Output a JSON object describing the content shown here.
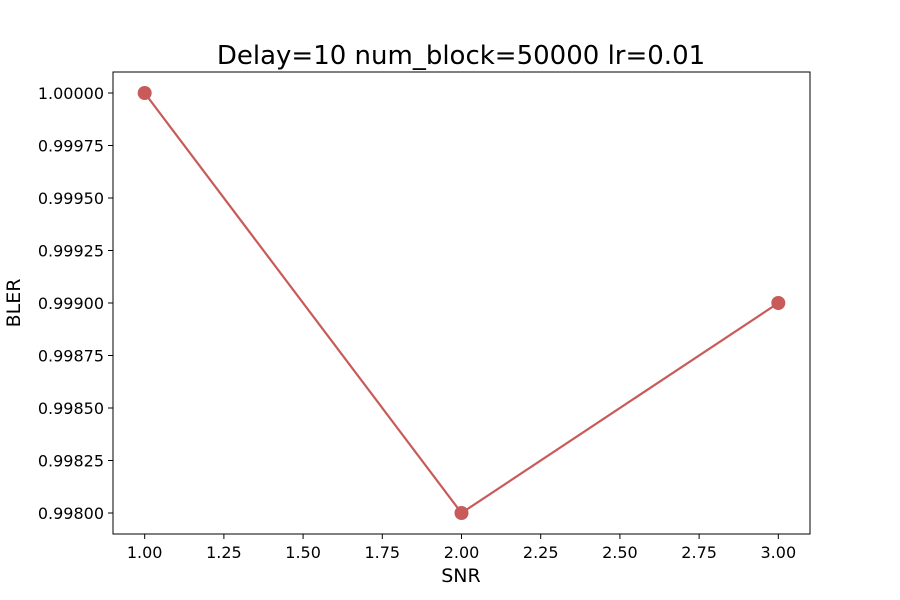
{
  "chart_data": {
    "type": "line",
    "title": "Delay=10 num_block=50000 lr=0.01",
    "xlabel": "SNR",
    "ylabel": "BLER",
    "x": [
      1.0,
      2.0,
      3.0
    ],
    "series": [
      {
        "values": [
          1.0,
          0.998,
          0.999
        ],
        "color": "#c85a5a",
        "marker": "circle"
      }
    ],
    "xlim": [
      0.9,
      3.1
    ],
    "ylim": [
      0.9979,
      1.0001
    ],
    "xticks": [
      1.0,
      1.25,
      1.5,
      1.75,
      2.0,
      2.25,
      2.5,
      2.75,
      3.0
    ],
    "xtick_labels": [
      "1.00",
      "1.25",
      "1.50",
      "1.75",
      "2.00",
      "2.25",
      "2.50",
      "2.75",
      "3.00"
    ],
    "yticks": [
      0.998,
      0.99825,
      0.9985,
      0.99875,
      0.999,
      0.99925,
      0.9995,
      0.99975,
      1.0
    ],
    "ytick_labels": [
      "0.99800",
      "0.99825",
      "0.99850",
      "0.99875",
      "0.99900",
      "0.99925",
      "0.99950",
      "0.99975",
      "1.00000"
    ],
    "grid": false,
    "legend": false
  }
}
